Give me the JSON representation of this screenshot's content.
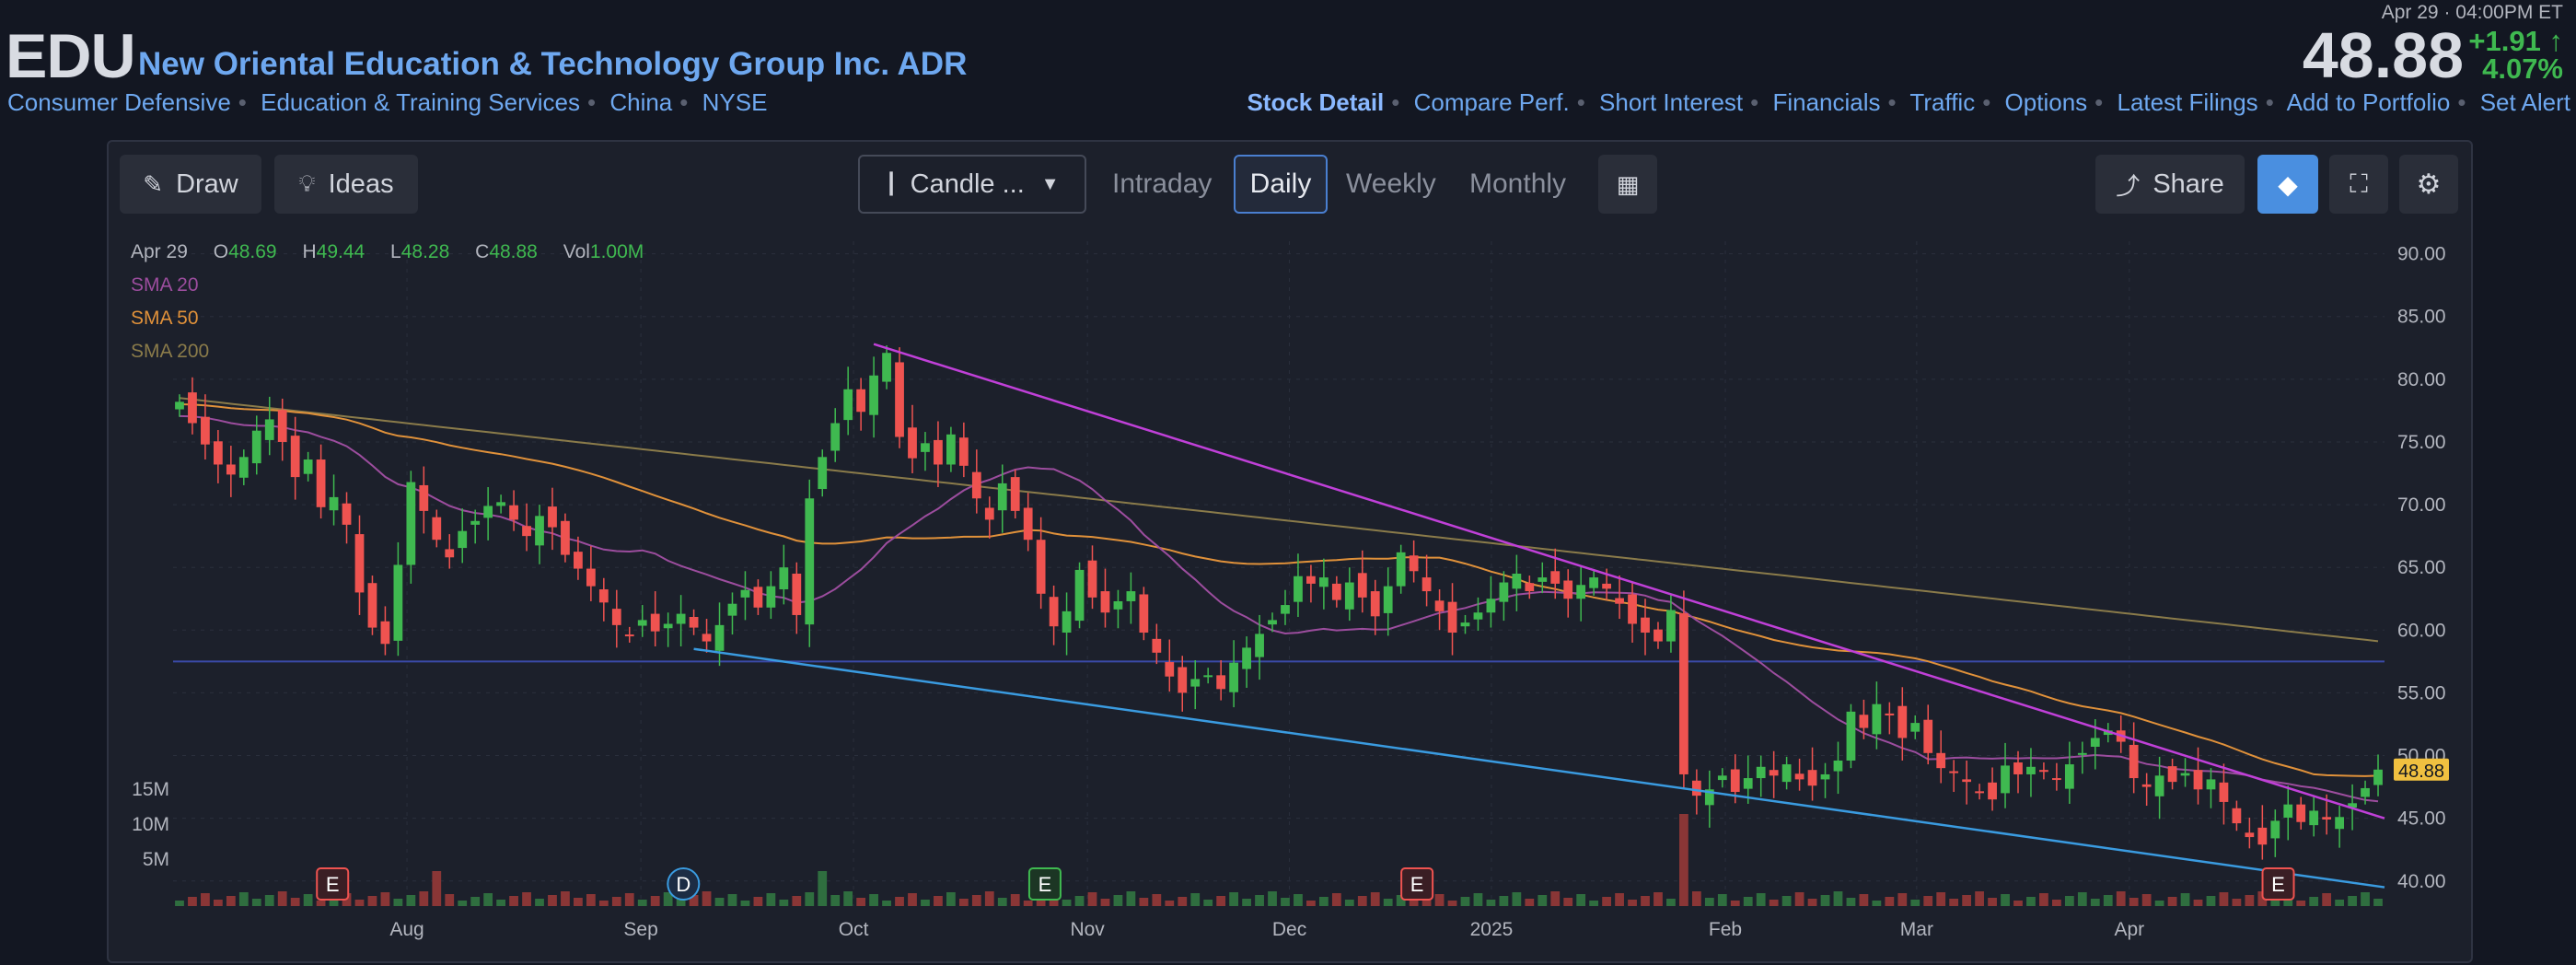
{
  "header": {
    "ticker": "EDU",
    "company": "New Oriental Education & Technology Group Inc. ADR",
    "categories": [
      "Consumer Defensive",
      "Education & Training Services",
      "China",
      "NYSE"
    ],
    "datetime": "Apr 29 · 04:00PM ET",
    "price": "48.88",
    "change": "+1.91",
    "change_pct": "4.07%",
    "links": [
      "Stock Detail",
      "Compare Perf.",
      "Short Interest",
      "Financials",
      "Traffic",
      "Options",
      "Latest Filings",
      "Add to Portfolio",
      "Set Alert"
    ]
  },
  "toolbar": {
    "draw_label": "Draw",
    "ideas_label": "Ideas",
    "chart_type_label": "Candle ...",
    "timeframes": [
      "Intraday",
      "Daily",
      "Weekly",
      "Monthly"
    ],
    "selected_timeframe": "Daily",
    "share_label": "Share"
  },
  "legend": {
    "date": "Apr 29",
    "open_label": "O",
    "open": "48.69",
    "high_label": "H",
    "high": "49.44",
    "low_label": "L",
    "low": "48.28",
    "close_label": "C",
    "close": "48.88",
    "vol_label": "Vol",
    "vol": "1.00M",
    "sma20": "SMA 20",
    "sma50": "SMA 50",
    "sma200": "SMA 200"
  },
  "colors": {
    "up": "#3fb950",
    "down": "#ef5350",
    "sma20": "#9c4d9e",
    "sma50": "#e0913a",
    "sma200": "#8a7b4a",
    "trend_upper": "#c040d8",
    "trend_lower": "#3a9be0",
    "support": "#3a4aa8",
    "accent": "#6ea8f0"
  },
  "chart_data": {
    "type": "candlestick",
    "ylim": [
      38,
      91
    ],
    "yticks": [
      "90.00",
      "85.00",
      "80.00",
      "75.00",
      "70.00",
      "65.00",
      "60.00",
      "55.00",
      "50.00",
      "45.00",
      "40.00"
    ],
    "xticks": [
      "Aug",
      "Sep",
      "Oct",
      "Nov",
      "Dec",
      "2025",
      "Feb",
      "Mar",
      "Apr"
    ],
    "volume_ticks": [
      "15M",
      "10M",
      "5M"
    ],
    "last_price_tag": "48.88",
    "support_level": 57.5,
    "upper_trendline": {
      "from": [
        "Oct 4",
        82.8
      ],
      "to": [
        "Apr 29",
        45.0
      ]
    },
    "lower_trendline": {
      "from": [
        "Sep 11",
        58.5
      ],
      "to": [
        "Apr 29",
        39.5
      ]
    },
    "closes": [
      78.2,
      76.5,
      74.8,
      73.2,
      72.4,
      73.8,
      75.9,
      76.8,
      75.0,
      72.2,
      73.6,
      69.8,
      70.6,
      68.4,
      63.0,
      60.2,
      58.9,
      65.2,
      71.8,
      69.5,
      67.2,
      65.8,
      67.9,
      68.7,
      69.9,
      70.2,
      68.8,
      67.5,
      69.1,
      68.2,
      66.0,
      64.9,
      63.5,
      62.2,
      60.4,
      59.6,
      60.8,
      59.9,
      60.5,
      61.3,
      60.2,
      59.1,
      60.4,
      62.1,
      63.2,
      61.8,
      63.5,
      65.0,
      61.2,
      70.5,
      73.8,
      76.5,
      79.2,
      77.4,
      80.3,
      82.1,
      75.4,
      73.7,
      74.9,
      73.2,
      75.6,
      73.1,
      70.5,
      68.8,
      71.7,
      69.5,
      67.2,
      62.9,
      60.3,
      61.5,
      64.8,
      62.6,
      61.4,
      62.3,
      63.1,
      59.8,
      58.2,
      56.3,
      55.0,
      56.1,
      56.4,
      55.3,
      57.4,
      58.6,
      59.7,
      60.8,
      62.0,
      64.3,
      63.7,
      64.2,
      62.4,
      63.8,
      62.6,
      61.1,
      63.5,
      66.2,
      64.7,
      63.1,
      61.5,
      59.8,
      60.6,
      61.4,
      62.5,
      63.8,
      64.5,
      63.1,
      64.2,
      63.7,
      62.5,
      63.6,
      64.2,
      63.3,
      62.1,
      60.5,
      59.8,
      59.1,
      61.6,
      48.5,
      46.8,
      47.3,
      48.4,
      47.1,
      48.2,
      49.1,
      48.4,
      49.3,
      48.1,
      47.6,
      48.5,
      49.6,
      53.5,
      52.2,
      54.1,
      53.2,
      51.4,
      52.6,
      50.2,
      49.0,
      48.6,
      47.9,
      47.1,
      46.5,
      49.2,
      48.5,
      49.1,
      48.7,
      48.1,
      49.3,
      50.2,
      51.4,
      52.0,
      51.1,
      48.2,
      47.5,
      48.4,
      47.9,
      48.6,
      47.3,
      48.1,
      46.3,
      44.6,
      43.5,
      42.9,
      44.8,
      46.1,
      44.7,
      45.6,
      44.9,
      45.1,
      46.2,
      47.4,
      48.88
    ],
    "events": [
      {
        "label": "E",
        "type": "earnings"
      },
      {
        "label": "D",
        "type": "dividend"
      },
      {
        "label": "E",
        "type": "earnings-confirmed"
      },
      {
        "label": "E",
        "type": "earnings"
      },
      {
        "label": "E",
        "type": "earnings"
      }
    ]
  }
}
